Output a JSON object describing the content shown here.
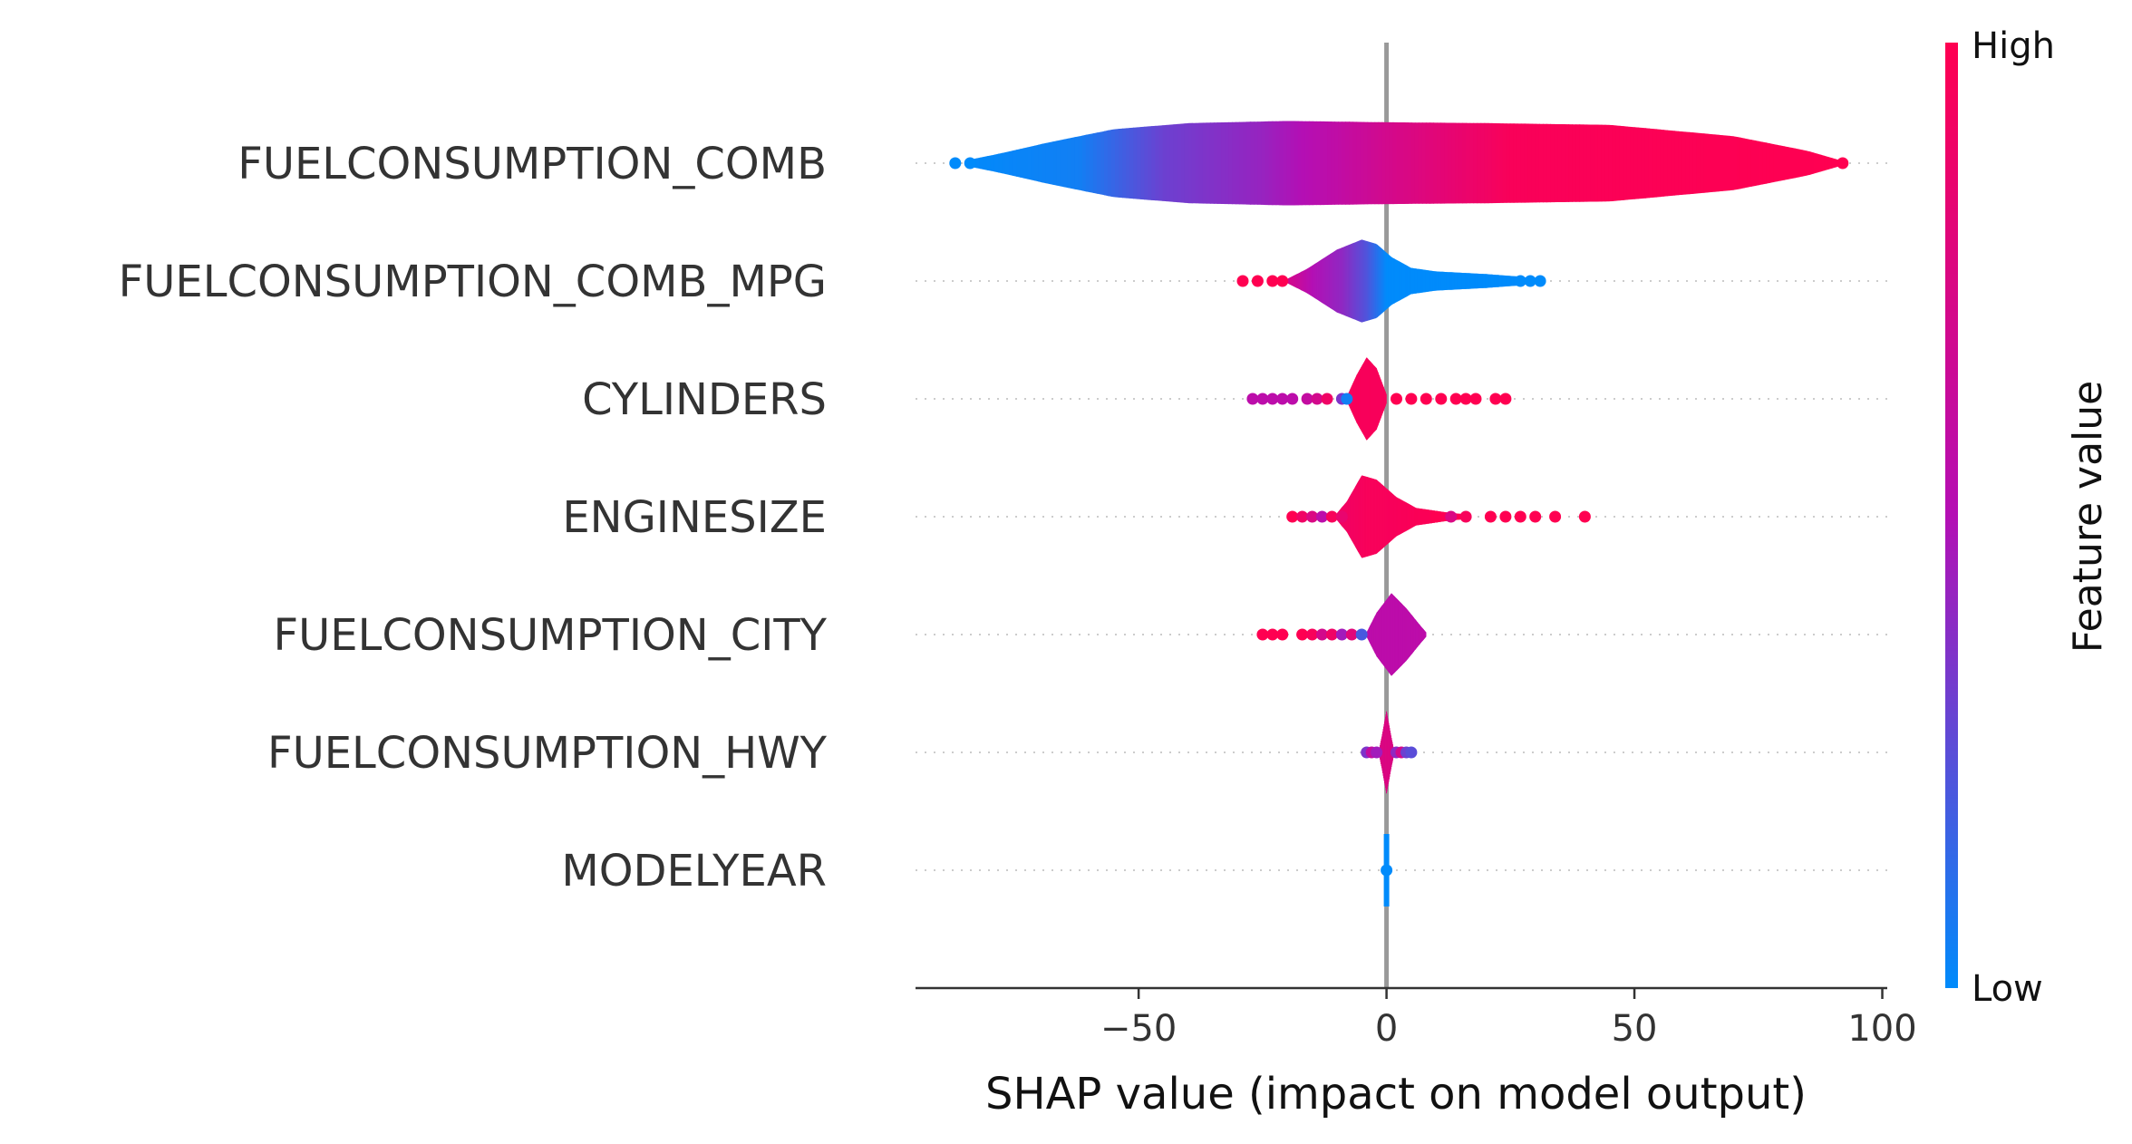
{
  "chart_data": {
    "type": "violin",
    "xlabel": "SHAP value (impact on model output)",
    "xlim": [
      -95,
      101
    ],
    "xticks": [
      -50,
      0,
      50,
      100
    ],
    "xtick_labels": [
      "−50",
      "0",
      "50",
      "100"
    ],
    "colorbar": {
      "title": "Feature value",
      "high_label": "High",
      "low_label": "Low",
      "low_color": "#008bfb",
      "mid_color": "#b40fb4",
      "high_color": "#ff0051"
    },
    "features": [
      {
        "name": "FUELCONSUMPTION_COMB",
        "min": -87,
        "max": 92,
        "profile": [
          [
            -85,
            0.06
          ],
          [
            -78,
            0.22
          ],
          [
            -68,
            0.48
          ],
          [
            -55,
            0.78
          ],
          [
            -40,
            0.92
          ],
          [
            -20,
            0.97
          ],
          [
            0,
            0.94
          ],
          [
            20,
            0.92
          ],
          [
            45,
            0.88
          ],
          [
            70,
            0.62
          ],
          [
            85,
            0.28
          ],
          [
            92,
            0.05
          ]
        ],
        "colors": [
          [
            -87,
            0.0
          ],
          [
            -62,
            0.05
          ],
          [
            -45,
            0.3
          ],
          [
            -25,
            0.42
          ],
          [
            -12,
            0.55
          ],
          [
            0,
            0.7
          ],
          [
            25,
            0.96
          ],
          [
            92,
            1.0
          ]
        ],
        "points": [
          [
            -87,
            0.0
          ],
          [
            -84,
            0.0
          ],
          [
            92,
            1.0
          ]
        ]
      },
      {
        "name": "FUELCONSUMPTION_COMB_MPG",
        "min": -29,
        "max": 31,
        "profile": [
          [
            -20,
            0.05
          ],
          [
            -16,
            0.28
          ],
          [
            -10,
            0.72
          ],
          [
            -5,
            0.95
          ],
          [
            -2,
            0.85
          ],
          [
            1,
            0.55
          ],
          [
            5,
            0.3
          ],
          [
            10,
            0.22
          ],
          [
            20,
            0.16
          ],
          [
            27,
            0.1
          ],
          [
            30,
            0.04
          ]
        ],
        "colors": [
          [
            -20,
            0.72
          ],
          [
            -15,
            0.5
          ],
          [
            -9,
            0.4
          ],
          [
            -4,
            0.22
          ],
          [
            0,
            0.0
          ],
          [
            31,
            0.0
          ]
        ],
        "points": [
          [
            -29,
            1.0
          ],
          [
            -26,
            1.0
          ],
          [
            -23,
            1.0
          ],
          [
            -21,
            1.0
          ],
          [
            27,
            0.0
          ],
          [
            29,
            0.0
          ],
          [
            31,
            0.0
          ]
        ]
      },
      {
        "name": "CYLINDERS",
        "min": -27,
        "max": 24,
        "profile": [
          [
            -8,
            0.05
          ],
          [
            -6,
            0.55
          ],
          [
            -4,
            0.95
          ],
          [
            -2,
            0.7
          ],
          [
            0,
            0.1
          ]
        ],
        "colors": [
          [
            -8,
            0.95
          ],
          [
            0,
            0.95
          ]
        ],
        "points": [
          [
            -27,
            0.55
          ],
          [
            -25,
            0.55
          ],
          [
            -23,
            0.55
          ],
          [
            -21,
            0.55
          ],
          [
            -19,
            0.55
          ],
          [
            -16,
            0.6
          ],
          [
            -14,
            0.7
          ],
          [
            -12,
            0.9
          ],
          [
            -9,
            0.35
          ],
          [
            -8,
            0.05
          ],
          [
            2,
            1.0
          ],
          [
            5,
            1.0
          ],
          [
            8,
            1.0
          ],
          [
            11,
            1.0
          ],
          [
            14,
            1.0
          ],
          [
            16,
            1.0
          ],
          [
            18,
            1.0
          ],
          [
            22,
            1.0
          ],
          [
            24,
            1.0
          ]
        ]
      },
      {
        "name": "ENGINESIZE",
        "min": -19,
        "max": 40,
        "profile": [
          [
            -10,
            0.08
          ],
          [
            -8,
            0.35
          ],
          [
            -5,
            0.95
          ],
          [
            -2,
            0.85
          ],
          [
            2,
            0.45
          ],
          [
            6,
            0.2
          ],
          [
            12,
            0.1
          ],
          [
            16,
            0.05
          ]
        ],
        "colors": [
          [
            -10,
            0.9
          ],
          [
            -4,
            0.95
          ],
          [
            0,
            0.95
          ],
          [
            16,
            1.0
          ]
        ],
        "points": [
          [
            -19,
            1.0
          ],
          [
            -17,
            0.9
          ],
          [
            -15,
            0.75
          ],
          [
            -13,
            0.55
          ],
          [
            -11,
            0.95
          ],
          [
            -9,
            0.85
          ],
          [
            10,
            1.0
          ],
          [
            13,
            0.75
          ],
          [
            16,
            0.95
          ],
          [
            21,
            1.0
          ],
          [
            24,
            1.0
          ],
          [
            27,
            1.0
          ],
          [
            30,
            1.0
          ],
          [
            34,
            1.0
          ],
          [
            40,
            1.0
          ]
        ]
      },
      {
        "name": "FUELCONSUMPTION_CITY",
        "min": -25,
        "max": 8,
        "profile": [
          [
            -4,
            0.05
          ],
          [
            -2,
            0.5
          ],
          [
            1,
            0.95
          ],
          [
            4,
            0.6
          ],
          [
            7,
            0.18
          ],
          [
            8,
            0.05
          ]
        ],
        "colors": [
          [
            -4,
            0.55
          ],
          [
            8,
            0.55
          ]
        ],
        "points": [
          [
            -25,
            1.0
          ],
          [
            -23,
            1.0
          ],
          [
            -21,
            1.0
          ],
          [
            -17,
            1.0
          ],
          [
            -15,
            0.95
          ],
          [
            -13,
            0.7
          ],
          [
            -11,
            0.9
          ],
          [
            -9,
            0.45
          ],
          [
            -7,
            0.8
          ],
          [
            -5,
            0.2
          ]
        ]
      },
      {
        "name": "FUELCONSUMPTION_HWY",
        "min": -4,
        "max": 5,
        "profile": [
          [
            -1.5,
            0.05
          ],
          [
            -0.8,
            0.45
          ],
          [
            0,
            0.95
          ],
          [
            0.8,
            0.45
          ],
          [
            1.5,
            0.05
          ]
        ],
        "colors": [
          [
            -1.5,
            0.75
          ],
          [
            1.5,
            0.75
          ]
        ],
        "points": [
          [
            -4,
            0.35
          ],
          [
            -3,
            0.6
          ],
          [
            -2,
            0.45
          ],
          [
            2,
            0.4
          ],
          [
            3,
            0.7
          ],
          [
            4,
            0.3
          ],
          [
            5,
            0.25
          ]
        ]
      },
      {
        "name": "MODELYEAR",
        "min": 0,
        "max": 0,
        "profile": [],
        "colors": [],
        "points": [
          [
            0,
            0.0
          ]
        ],
        "spike": true
      }
    ]
  }
}
